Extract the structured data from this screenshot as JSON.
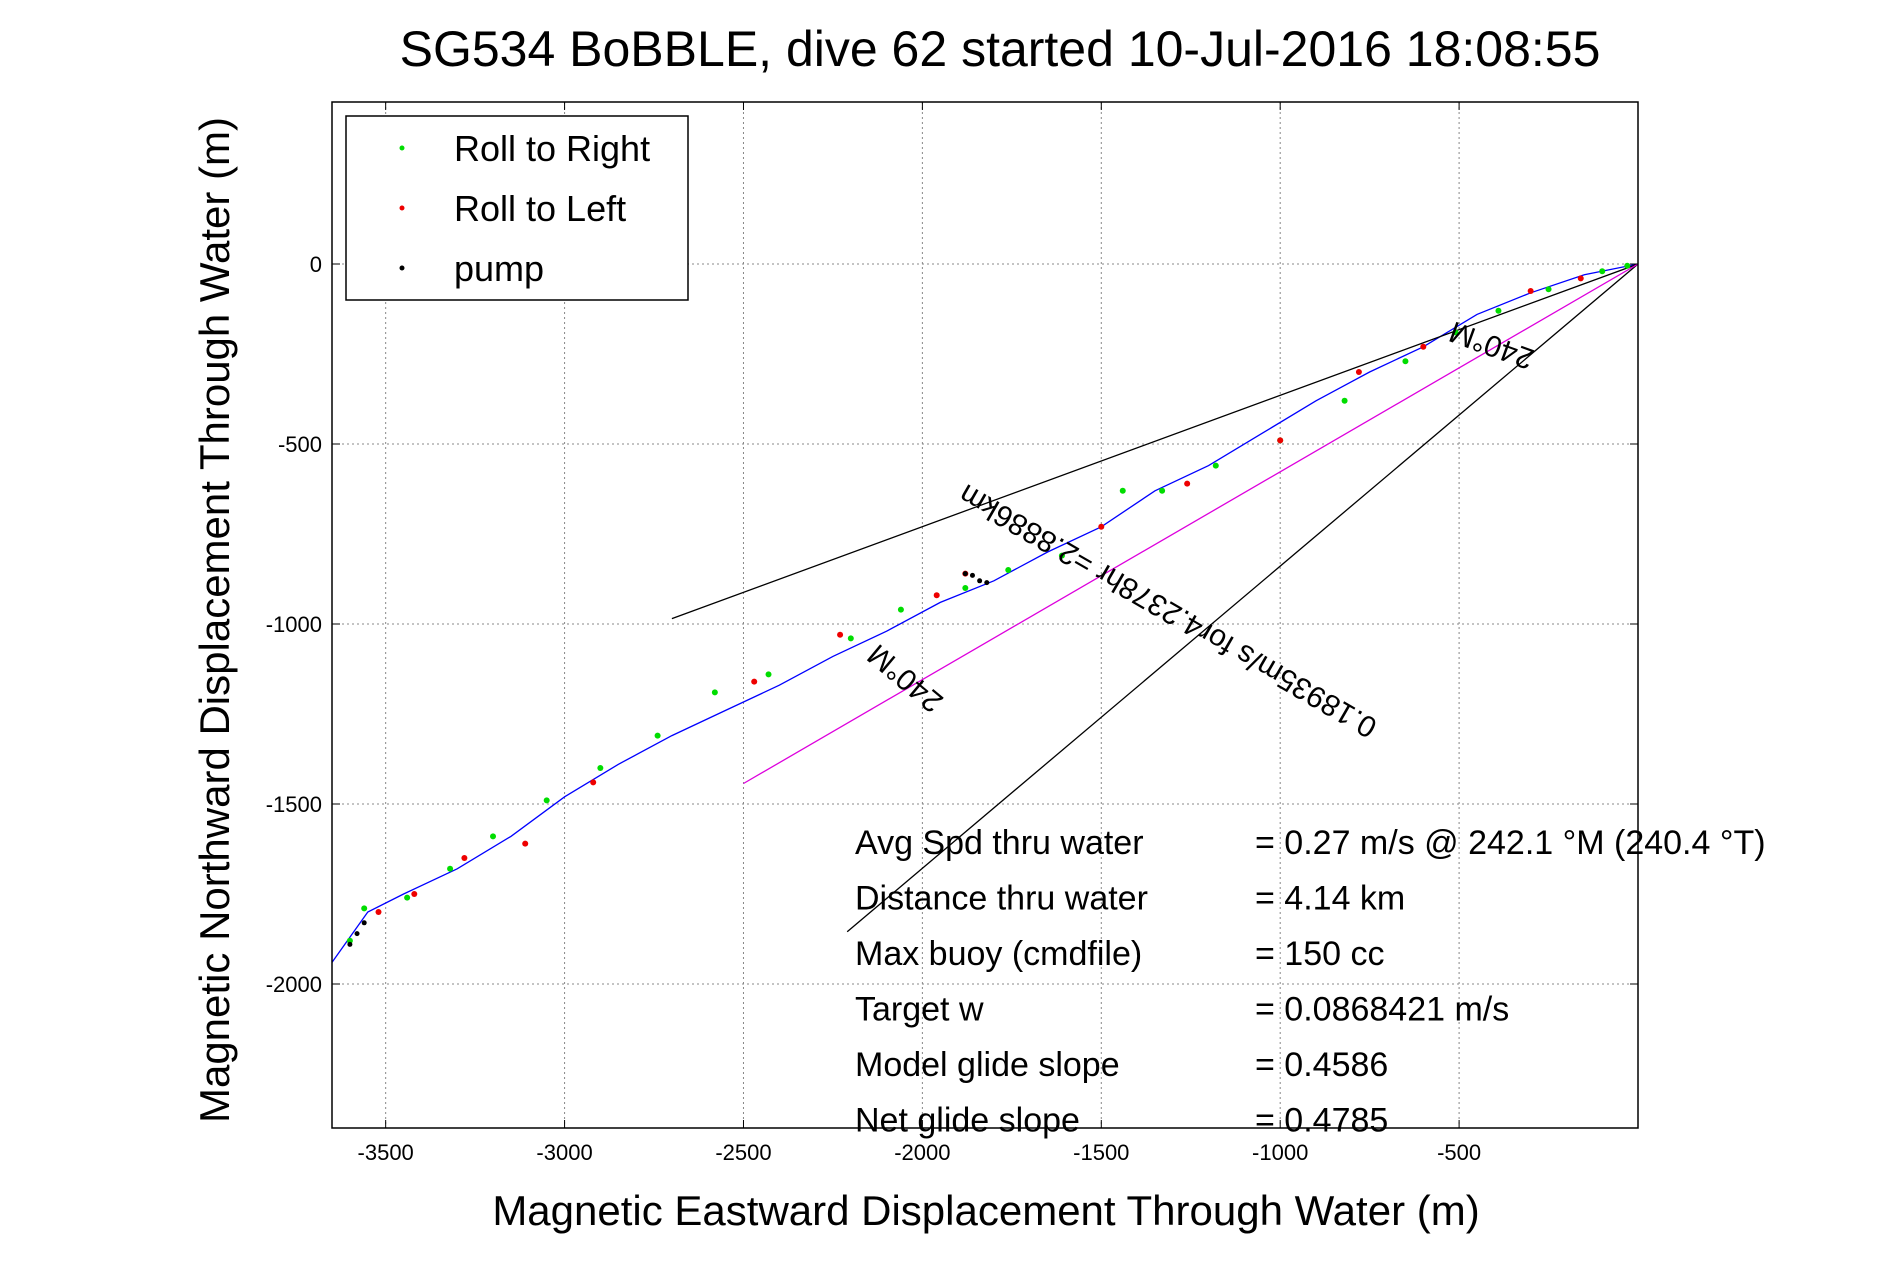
{
  "chart_data": {
    "type": "line",
    "title": "SG534 BoBBLE, dive 62 started 10-Jul-2016 18:08:55",
    "xlabel": "Magnetic Eastward Displacement Through Water (m)",
    "ylabel": "Magnetic Northward Displacement Through Water (m)",
    "xlim": [
      -3650,
      0
    ],
    "ylim": [
      -2400,
      450
    ],
    "grid": true,
    "legend_position": "top-left",
    "x_ticks": [
      {
        "value": -3500,
        "label": "-3500"
      },
      {
        "value": -3000,
        "label": "-3000"
      },
      {
        "value": -2500,
        "label": "-2500"
      },
      {
        "value": -2000,
        "label": "-2000"
      },
      {
        "value": -1500,
        "label": "-1500"
      },
      {
        "value": -1000,
        "label": "-1000"
      },
      {
        "value": -500,
        "label": "-500"
      }
    ],
    "y_ticks": [
      {
        "value": 0,
        "label": "0"
      },
      {
        "value": -500,
        "label": "-500"
      },
      {
        "value": -1000,
        "label": "-1000"
      },
      {
        "value": -1500,
        "label": "-1500"
      },
      {
        "value": -2000,
        "label": "-2000"
      }
    ],
    "legend": [
      {
        "label": "Roll to Right",
        "color": "#00dd00"
      },
      {
        "label": "Roll to Left",
        "color": "#ee0000"
      },
      {
        "label": "pump",
        "color": "#000000"
      }
    ],
    "series": [
      {
        "color": "#0000ff",
        "x": [
          0,
          -150,
          -300,
          -450,
          -600,
          -750,
          -900,
          -1050,
          -1200,
          -1350,
          -1500,
          -1650,
          -1800,
          -1950,
          -2100,
          -2250,
          -2400,
          -2550,
          -2700,
          -2850,
          -3000,
          -3150,
          -3300,
          -3450,
          -3550,
          -3650
        ],
        "y": [
          0,
          -30,
          -80,
          -140,
          -230,
          -300,
          -380,
          -470,
          -560,
          -630,
          -730,
          -800,
          -880,
          -940,
          -1020,
          -1090,
          -1170,
          -1240,
          -1310,
          -1390,
          -1480,
          -1590,
          -1680,
          -1750,
          -1800,
          -1940
        ]
      },
      {
        "color": "#000000",
        "x": [
          0,
          -2700
        ],
        "y": [
          0,
          -985
        ]
      },
      {
        "color": "#000000",
        "x": [
          0,
          -2210
        ],
        "y": [
          0,
          -1855
        ]
      },
      {
        "color": "#dd00dd",
        "x": [
          0,
          -2500
        ],
        "y": [
          0,
          -1443
        ]
      }
    ],
    "markers": {
      "right_x": [
        -30,
        -100,
        -250,
        -390,
        -510,
        -650,
        -820,
        -1000,
        -1180,
        -1330,
        -1440,
        -1610,
        -1760,
        -1880,
        -2060,
        -2200,
        -2430,
        -2580,
        -2740,
        -2900,
        -3050,
        -3200,
        -3320,
        -3440,
        -3560,
        -3600
      ],
      "right_y": [
        -5,
        -20,
        -70,
        -130,
        -190,
        -270,
        -380,
        -490,
        -560,
        -630,
        -630,
        -810,
        -850,
        -900,
        -960,
        -1040,
        -1140,
        -1190,
        -1310,
        -1400,
        -1490,
        -1590,
        -1680,
        -1760,
        -1790,
        -1880
      ],
      "left_x": [
        -160,
        -300,
        -600,
        -780,
        -1000,
        -1260,
        -1500,
        -1880,
        -1960,
        -2230,
        -2470,
        -2920,
        -3110,
        -3280,
        -3420,
        -3520
      ],
      "left_y": [
        -40,
        -75,
        -230,
        -300,
        -490,
        -610,
        -730,
        -860,
        -920,
        -1030,
        -1160,
        -1440,
        -1610,
        -1650,
        -1750,
        -1800
      ],
      "pump_x": [
        -1880,
        -1860,
        -1840,
        -1820,
        -3560,
        -3580,
        -3600
      ],
      "pump_y": [
        -860,
        -865,
        -880,
        -885,
        -1830,
        -1860,
        -1890
      ]
    },
    "annotations": [
      {
        "text": "240°M",
        "x": -400,
        "y": -200,
        "rotation": 200
      },
      {
        "text": "0.18935m/s for4.2378hr =2.8886km",
        "x": -1300,
        "y": -940,
        "rotation": 210
      },
      {
        "text": "240°M",
        "x": -2030,
        "y": -1130,
        "rotation": 220
      }
    ],
    "stats": [
      {
        "label": "Avg Spd thru water",
        "value": "=  0.27 m/s @ 242.1 °M (240.4 °T)"
      },
      {
        "label": "Distance thru water",
        "value": "=  4.14 km"
      },
      {
        "label": "Max buoy (cmdfile)",
        "value": "= 150 cc"
      },
      {
        "label": "Target w",
        "value": "= 0.0868421 m/s"
      },
      {
        "label": "Model glide slope",
        "value": "= 0.4586"
      },
      {
        "label": "Net glide slope",
        "value": "= 0.4785"
      }
    ]
  }
}
